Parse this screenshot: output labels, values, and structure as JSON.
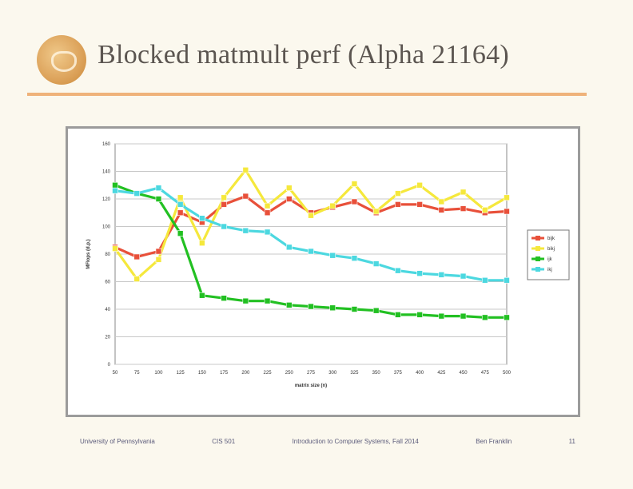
{
  "slide": {
    "title": "Blocked matmult perf (Alpha 21164)",
    "footer": {
      "university": "University of Pennsylvania",
      "course": "CIS 501",
      "lecture": "Introduction to Computer Systems, Fall 2014",
      "author": "Ben Franklin",
      "page": "11"
    }
  },
  "colors": {
    "bg": "#fbf8ee",
    "rule": "#efb27a",
    "plot_bg": "#ffffff",
    "grid": "#c8c8c8"
  },
  "chart_data": {
    "type": "line",
    "title": "",
    "xlabel": "matrix size (n)",
    "ylabel": "MFlops (d.p.)",
    "x": [
      50,
      75,
      100,
      125,
      150,
      175,
      200,
      225,
      250,
      275,
      300,
      325,
      350,
      375,
      400,
      425,
      450,
      475,
      500
    ],
    "ylim": [
      0,
      160
    ],
    "yticks": [
      0,
      20,
      40,
      60,
      80,
      100,
      120,
      140,
      160
    ],
    "grid": true,
    "legend": "right",
    "series": [
      {
        "name": "bijk",
        "color": "#e8503a",
        "marker": "square",
        "values": [
          85,
          78,
          82,
          110,
          103,
          116,
          122,
          110,
          120,
          110,
          114,
          118,
          110,
          116,
          116,
          112,
          113,
          110,
          111
        ]
      },
      {
        "name": "bikj",
        "color": "#f5e83c",
        "marker": "square",
        "values": [
          84,
          62,
          76,
          121,
          88,
          121,
          141,
          115,
          128,
          108,
          115,
          131,
          111,
          124,
          130,
          118,
          125,
          112,
          121
        ]
      },
      {
        "name": "ijk",
        "color": "#22c022",
        "marker": "square",
        "values": [
          130,
          124,
          120,
          95,
          50,
          48,
          46,
          46,
          43,
          42,
          41,
          40,
          39,
          36,
          36,
          35,
          35,
          34,
          34
        ]
      },
      {
        "name": "ikj",
        "color": "#4cd8e0",
        "marker": "square",
        "values": [
          126,
          124,
          128,
          116,
          106,
          100,
          97,
          96,
          85,
          82,
          79,
          77,
          73,
          68,
          66,
          65,
          64,
          61,
          61
        ]
      }
    ]
  }
}
